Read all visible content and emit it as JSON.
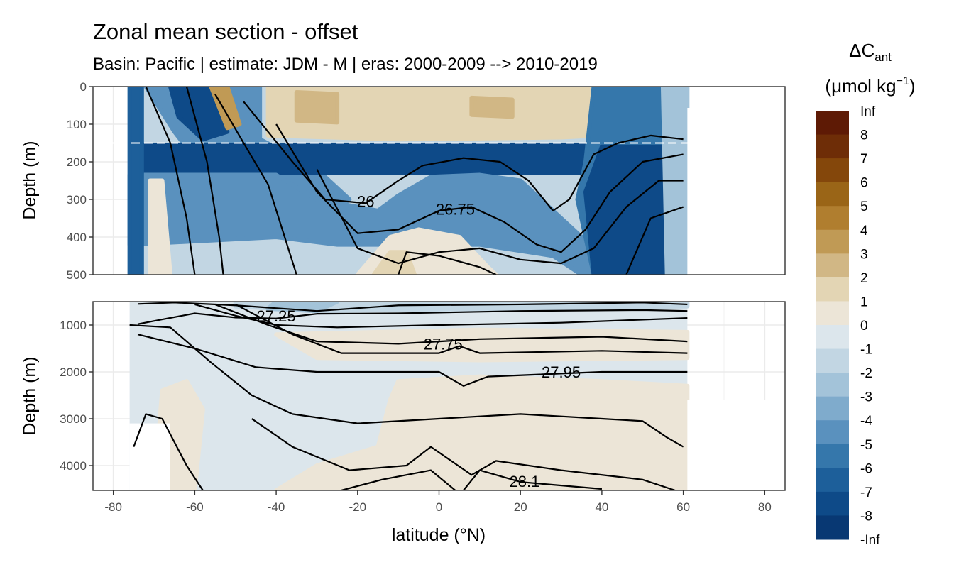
{
  "chart_data": {
    "type": "heatmap",
    "title": "Zonal mean section - offset",
    "subtitle": "Basin: Pacific | estimate: JDM - M | eras: 2000-2009 --> 2010-2019",
    "xlabel": "latitude (°N)",
    "ylabel": "Depth (m)",
    "x_ticks": [
      "-80",
      "-60",
      "-40",
      "-20",
      "0",
      "20",
      "40",
      "60",
      "80"
    ],
    "xlim": [
      -85,
      85
    ],
    "grid": true,
    "legend_position": "right",
    "legend": {
      "title_main": "ΔC",
      "title_sub": "ant",
      "unit_prefix": "(μmol kg",
      "unit_exp": "−1",
      "unit_suffix": ")",
      "labels": [
        "Inf",
        "8",
        "7",
        "6",
        "5",
        "4",
        "3",
        "2",
        "1",
        "0",
        "-1",
        "-2",
        "-3",
        "-4",
        "-5",
        "-6",
        "-7",
        "-8",
        "-Inf"
      ],
      "colors": [
        "#5e1a05",
        "#6e2d07",
        "#84470b",
        "#9a6517",
        "#b07e2f",
        "#c09a55",
        "#d1b785",
        "#e3d5b4",
        "#ece5d7",
        "#dce6ec",
        "#c2d6e3",
        "#a3c3d9",
        "#7fabcc",
        "#5a91be",
        "#3577ab",
        "#1d5f9a",
        "#0e4a88",
        "#083873",
        "#07215e"
      ]
    },
    "panels": [
      {
        "name": "upper",
        "ylim": [
          0,
          500
        ],
        "y_ticks": [
          "0",
          "100",
          "200",
          "300",
          "400",
          "500"
        ],
        "reference_line_depth": 150,
        "data_range_lat": [
          -76,
          61
        ],
        "contour_labels": [
          {
            "text": "26",
            "lat": -18,
            "depth": 305
          },
          {
            "text": "26.75",
            "lat": 4,
            "depth": 325
          }
        ]
      },
      {
        "name": "lower",
        "ylim": [
          500,
          4500
        ],
        "y_ticks": [
          "1000",
          "2000",
          "3000",
          "4000"
        ],
        "data_range_lat": [
          -76,
          61
        ],
        "contour_labels": [
          {
            "text": "27.25",
            "lat": -40,
            "depth": 800
          },
          {
            "text": "27.75",
            "lat": 1,
            "depth": 1400
          },
          {
            "text": "27.95",
            "lat": 30,
            "depth": 2000
          },
          {
            "text": "28.1",
            "lat": 21,
            "depth": 4330
          }
        ]
      }
    ]
  }
}
